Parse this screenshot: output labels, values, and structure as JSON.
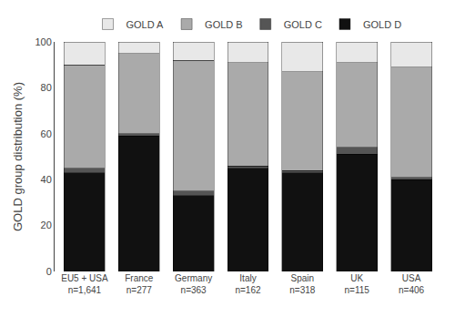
{
  "chart_data": {
    "type": "bar",
    "stacked": true,
    "categories": [
      "EU5 + USA\nn=1,641",
      "France\nn=277",
      "Germany\nn=363",
      "Italy\nn=162",
      "Spain\nn=318",
      "UK\nn=115",
      "USA\nn=406"
    ],
    "series": [
      {
        "name": "GOLD D",
        "color": "#111111",
        "values": [
          43,
          59,
          33,
          45,
          43,
          51,
          40
        ]
      },
      {
        "name": "GOLD C",
        "color": "#555555",
        "values": [
          2,
          1,
          2,
          1,
          1,
          3,
          1
        ]
      },
      {
        "name": "GOLD B",
        "color": "#aaaaaa",
        "values": [
          45,
          35,
          57,
          45,
          43,
          37,
          48
        ]
      },
      {
        "name": "GOLD A",
        "color": "#e8e8e8",
        "values": [
          10,
          5,
          8,
          9,
          13,
          9,
          11
        ]
      }
    ],
    "ylabel": "GOLD group distribution (%)",
    "ylim": [
      0,
      100
    ],
    "yticks": [
      0,
      20,
      40,
      60,
      80,
      100
    ],
    "grid": false,
    "legend": "top"
  }
}
